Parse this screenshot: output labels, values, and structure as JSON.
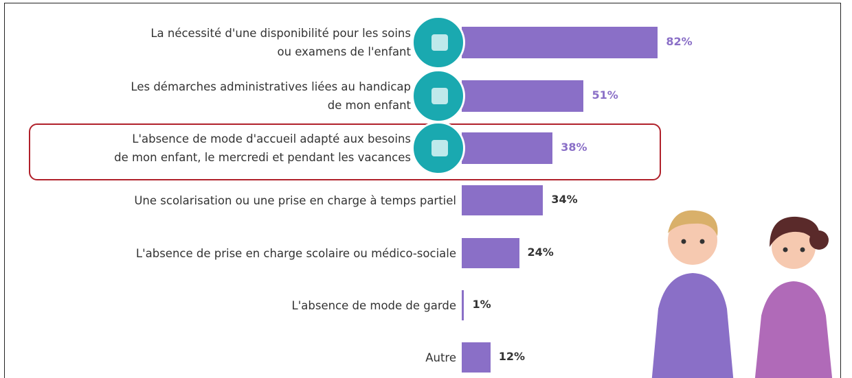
{
  "chart_data": {
    "type": "bar",
    "orientation": "horizontal",
    "categories": [
      "La nécessité d'une disponibilité pour les soins\nou examens de l'enfant",
      "Les démarches administratives liées au handicap\nde mon enfant",
      "L'absence de mode d'accueil adapté aux besoins\nde mon enfant, le mercredi et pendant les vacances",
      "Une scolarisation ou une prise en charge à temps partiel",
      "L'absence de prise en charge scolaire ou médico-sociale",
      "L'absence de mode de garde",
      "Autre"
    ],
    "values": [
      82,
      51,
      38,
      34,
      24,
      1,
      12
    ],
    "value_labels": [
      "82%",
      "51%",
      "38%",
      "34%",
      "24%",
      "1%",
      "12%"
    ],
    "color": "#8a6fc7"
  }
}
